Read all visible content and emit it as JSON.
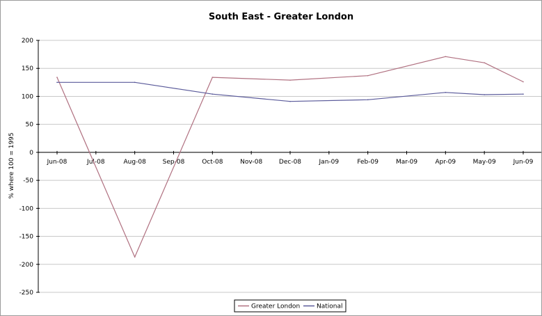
{
  "chart_data": {
    "type": "line",
    "title": "South East - Greater London",
    "xlabel": "",
    "ylabel": "% where 100 = 1995",
    "categories": [
      "Jun-08",
      "Jul-08",
      "Aug-08",
      "Sep-08",
      "Oct-08",
      "Nov-08",
      "Dec-08",
      "Jan-09",
      "Feb-09",
      "Mar-09",
      "Apr-09",
      "May-09",
      "Jun-09"
    ],
    "ylim": [
      -250,
      200
    ],
    "yticks": [
      200,
      150,
      100,
      50,
      0,
      -50,
      -100,
      -150,
      -200,
      -250
    ],
    "grid": true,
    "legend_position": "bottom",
    "series": [
      {
        "name": "Greater London",
        "color": "#b07080",
        "points": [
          {
            "x": "Jun-08",
            "y": 134
          },
          {
            "x": "Aug-08",
            "y": -187
          },
          {
            "x": "Oct-08",
            "y": 134
          },
          {
            "x": "Dec-08",
            "y": 129
          },
          {
            "x": "Feb-09",
            "y": 137
          },
          {
            "x": "Apr-09",
            "y": 171
          },
          {
            "x": "May-09",
            "y": 160
          },
          {
            "x": "Jun-09",
            "y": 126
          }
        ]
      },
      {
        "name": "National",
        "color": "#5a5a9a",
        "points": [
          {
            "x": "Jun-08",
            "y": 125
          },
          {
            "x": "Aug-08",
            "y": 125
          },
          {
            "x": "Oct-08",
            "y": 104
          },
          {
            "x": "Dec-08",
            "y": 91
          },
          {
            "x": "Feb-09",
            "y": 94
          },
          {
            "x": "Apr-09",
            "y": 107
          },
          {
            "x": "May-09",
            "y": 103
          },
          {
            "x": "Jun-09",
            "y": 104
          }
        ]
      }
    ]
  }
}
